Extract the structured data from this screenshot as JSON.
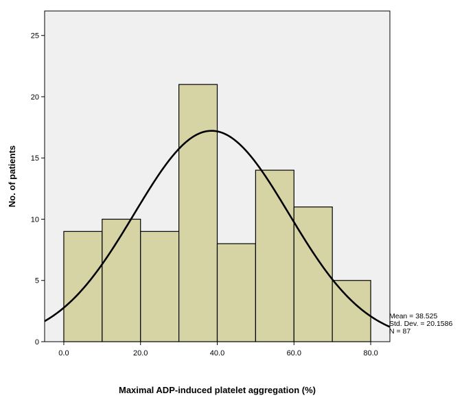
{
  "chart_data": {
    "type": "bar",
    "subtype": "histogram",
    "title": "",
    "xlabel": "Maximal ADP-induced platelet aggregation (%)",
    "ylabel": "No. of patients",
    "bins": [
      {
        "start": 0,
        "end": 10,
        "count": 9
      },
      {
        "start": 10,
        "end": 20,
        "count": 10
      },
      {
        "start": 20,
        "end": 30,
        "count": 9
      },
      {
        "start": 30,
        "end": 40,
        "count": 21
      },
      {
        "start": 40,
        "end": 50,
        "count": 8
      },
      {
        "start": 50,
        "end": 60,
        "count": 14
      },
      {
        "start": 60,
        "end": 70,
        "count": 11
      },
      {
        "start": 70,
        "end": 80,
        "count": 5
      }
    ],
    "xlim": [
      -5,
      85
    ],
    "ylim": [
      0,
      27
    ],
    "x_ticks": [
      0,
      20,
      40,
      60,
      80
    ],
    "x_tick_labels": [
      "0.0",
      "20.0",
      "40.0",
      "60.0",
      "80.0"
    ],
    "y_ticks": [
      0,
      5,
      10,
      15,
      20,
      25
    ],
    "y_tick_labels": [
      "0",
      "5",
      "10",
      "15",
      "20",
      "25"
    ],
    "normal_curve": {
      "mean": 38.525,
      "std_dev": 20.1586,
      "n": 87,
      "bin_width": 10
    },
    "stats": {
      "mean": "Mean = 38.525",
      "std_dev": "Std. Dev. = 20.1586",
      "n": "N = 87"
    },
    "colors": {
      "plot_background": "#f0f0f0",
      "bar_fill": "#d6d3a4",
      "bar_stroke": "#000000",
      "curve": "#000000"
    },
    "grid": false
  }
}
